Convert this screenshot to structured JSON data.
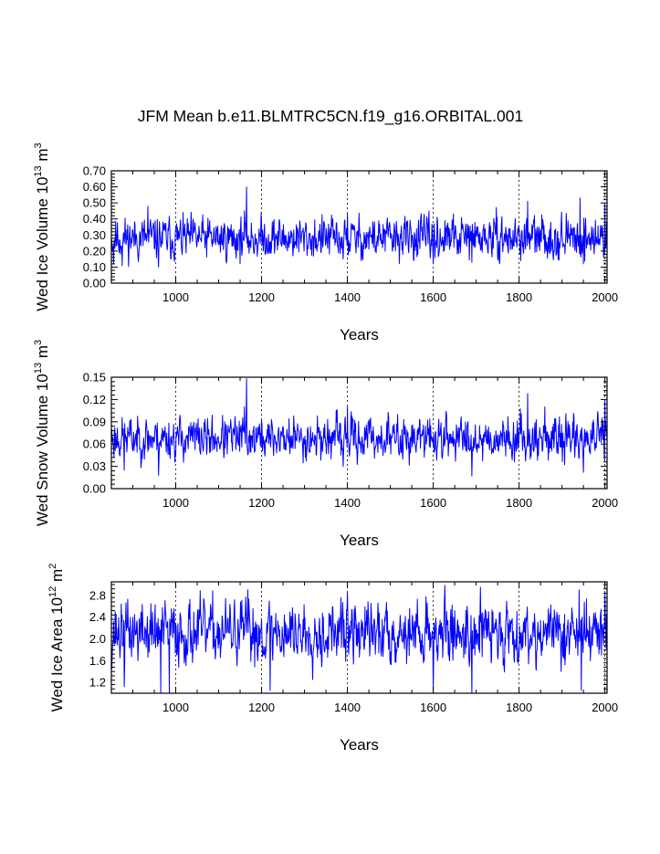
{
  "title": "JFM Mean b.e11.BLMTRC5CN.f19_g16.ORBITAL.001",
  "line_color": "#0000ff",
  "chart_data": [
    {
      "type": "line",
      "id": "volume",
      "ylabel_main": "Wed Ice Volume 10",
      "ylabel_sup1": "13",
      "ylabel_mid": " m",
      "ylabel_sup2": "3",
      "xlabel": "Years",
      "xlim": [
        850,
        2005
      ],
      "ylim": [
        0.0,
        0.7
      ],
      "yticks": [
        0.0,
        0.1,
        0.2,
        0.3,
        0.4,
        0.5,
        0.6,
        0.7
      ],
      "ytick_labels": [
        "0.00",
        "0.10",
        "0.20",
        "0.30",
        "0.40",
        "0.50",
        "0.60",
        "0.70"
      ],
      "xticks": [
        1000,
        1200,
        1400,
        1600,
        1800,
        2000
      ],
      "xtick_labels": [
        "1000",
        "1200",
        "1400",
        "1600",
        "1800",
        "2000"
      ],
      "grid_x": [
        1000,
        1200,
        1400,
        1600,
        1800,
        2000
      ],
      "series": [
        {
          "name": "Wed Ice Volume",
          "mean": 0.28,
          "amplitude": 0.06,
          "seed": 11,
          "spikes": [
            [
              1165,
              0.6
            ],
            [
              1160,
              0.45
            ],
            [
              1400,
              0.43
            ],
            [
              1942,
              0.53
            ],
            [
              2000,
              0.49
            ],
            [
              1820,
              0.51
            ],
            [
              935,
              0.48
            ],
            [
              855,
              0.12
            ],
            [
              875,
              0.11
            ],
            [
              960,
              0.1
            ],
            [
              1390,
              0.15
            ],
            [
              1600,
              0.12
            ],
            [
              1690,
              0.13
            ],
            [
              1950,
              0.12
            ]
          ]
        }
      ]
    },
    {
      "type": "line",
      "id": "snow",
      "ylabel_main": "Wed Snow Volume 10",
      "ylabel_sup1": "13",
      "ylabel_mid": " m",
      "ylabel_sup2": "3",
      "xlabel": "Years",
      "xlim": [
        850,
        2005
      ],
      "ylim": [
        0.0,
        0.15
      ],
      "yticks": [
        0.0,
        0.03,
        0.06,
        0.09,
        0.12,
        0.15
      ],
      "ytick_labels": [
        "0.00",
        "0.03",
        "0.06",
        "0.09",
        "0.12",
        "0.15"
      ],
      "xticks": [
        1000,
        1200,
        1400,
        1600,
        1800,
        2000
      ],
      "xtick_labels": [
        "1000",
        "1200",
        "1400",
        "1600",
        "1800",
        "2000"
      ],
      "grid_x": [
        1000,
        1200,
        1400,
        1600,
        1800,
        2000
      ],
      "series": [
        {
          "name": "Wed Snow Volume",
          "mean": 0.068,
          "amplitude": 0.013,
          "seed": 23,
          "spikes": [
            [
              1165,
              0.148
            ],
            [
              1160,
              0.11
            ],
            [
              1400,
              0.11
            ],
            [
              1820,
              0.128
            ],
            [
              2000,
              0.12
            ],
            [
              1860,
              0.11
            ],
            [
              880,
              0.025
            ],
            [
              960,
              0.018
            ],
            [
              1690,
              0.017
            ],
            [
              1950,
              0.022
            ],
            [
              1390,
              0.03
            ]
          ]
        }
      ]
    },
    {
      "type": "line",
      "id": "area",
      "ylabel_main": "Wed Ice Area 10",
      "ylabel_sup1": "12",
      "ylabel_mid": " m",
      "ylabel_sup2": "2",
      "xlabel": "Years",
      "xlim": [
        850,
        2005
      ],
      "ylim": [
        1.0,
        3.05
      ],
      "yticks": [
        1.2,
        1.6,
        2.0,
        2.4,
        2.8
      ],
      "ytick_labels": [
        "1.2",
        "1.6",
        "2.0",
        "2.4",
        "2.8"
      ],
      "xticks": [
        1000,
        1200,
        1400,
        1600,
        1800,
        2000
      ],
      "xtick_labels": [
        "1000",
        "1200",
        "1400",
        "1600",
        "1800",
        "2000"
      ],
      "grid_x": [
        1000,
        1200,
        1400,
        1600,
        1800,
        2000
      ],
      "series": [
        {
          "name": "Wed Ice Area",
          "mean": 2.12,
          "amplitude": 0.26,
          "seed": 37,
          "spikes": [
            [
              1168,
              2.9
            ],
            [
              1400,
              2.85
            ],
            [
              1710,
              2.95
            ],
            [
              1940,
              2.9
            ],
            [
              2000,
              2.85
            ],
            [
              965,
              1.0
            ],
            [
              985,
              1.0
            ],
            [
              1220,
              1.05
            ],
            [
              1600,
              1.05
            ],
            [
              1690,
              1.0
            ],
            [
              1945,
              1.05
            ],
            [
              880,
              1.12
            ]
          ]
        }
      ]
    }
  ]
}
